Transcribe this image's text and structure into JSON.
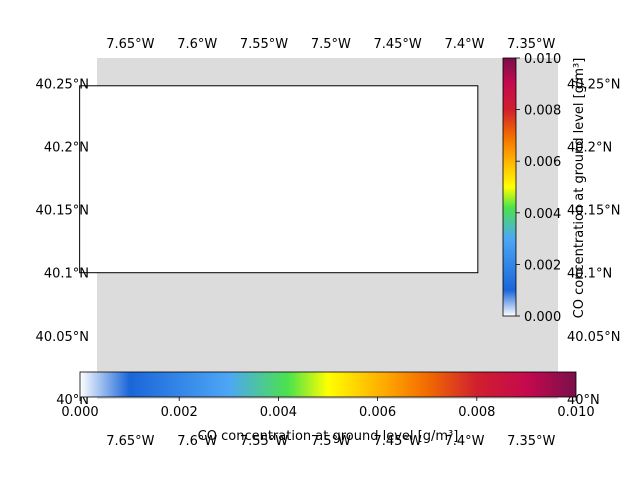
{
  "chart_data": [
    {
      "type": "heatmap",
      "title": "",
      "xlabel": "",
      "ylabel": "",
      "x_range": [
        -7.675,
        -7.33
      ],
      "y_range": [
        40.0,
        40.27
      ],
      "x_ticks": [
        "7.65°W",
        "7.6°W",
        "7.55°W",
        "7.5°W",
        "7.45°W",
        "7.4°W",
        "7.35°W"
      ],
      "x_tick_values": [
        -7.65,
        -7.6,
        -7.55,
        -7.5,
        -7.45,
        -7.4,
        -7.35
      ],
      "y_ticks": [
        "40°N",
        "40.05°N",
        "40.1°N",
        "40.15°N",
        "40.2°N",
        "40.25°N"
      ],
      "y_tick_values": [
        40.0,
        40.05,
        40.1,
        40.15,
        40.2,
        40.25
      ],
      "tick_labels_on": [
        "top",
        "bottom",
        "left",
        "right"
      ],
      "map_background_color": "#dcdcdc",
      "region_box": {
        "lon": [
          -7.688,
          -7.39
        ],
        "lat": [
          40.1,
          40.248
        ]
      },
      "grid": false
    },
    {
      "type": "colorbar",
      "orientation": "vertical",
      "label": "CO concentration at ground level [g/m³]",
      "range": [
        0.0,
        0.01
      ],
      "ticks": [
        "0.000",
        "0.002",
        "0.004",
        "0.006",
        "0.008",
        "0.010"
      ],
      "tick_values": [
        0.0,
        0.002,
        0.004,
        0.006,
        0.008,
        0.01
      ]
    },
    {
      "type": "colorbar",
      "orientation": "horizontal",
      "label": "CO concentration at ground level [g/m³]",
      "range": [
        0.0,
        0.01
      ],
      "ticks": [
        "0.000",
        "0.002",
        "0.004",
        "0.006",
        "0.008",
        "0.010"
      ],
      "tick_values": [
        0.0,
        0.002,
        0.004,
        0.006,
        0.008,
        0.01
      ]
    }
  ],
  "colormap": [
    {
      "offset": 0.0,
      "color": "#ffffff"
    },
    {
      "offset": 0.1,
      "color": "#1a66d9"
    },
    {
      "offset": 0.3,
      "color": "#4da6f5"
    },
    {
      "offset": 0.42,
      "color": "#4ce24c"
    },
    {
      "offset": 0.5,
      "color": "#ffff00"
    },
    {
      "offset": 0.62,
      "color": "#ffa500"
    },
    {
      "offset": 0.7,
      "color": "#f26b00"
    },
    {
      "offset": 0.8,
      "color": "#d01f2e"
    },
    {
      "offset": 0.9,
      "color": "#c6094e"
    },
    {
      "offset": 1.0,
      "color": "#7a0f4a"
    }
  ]
}
